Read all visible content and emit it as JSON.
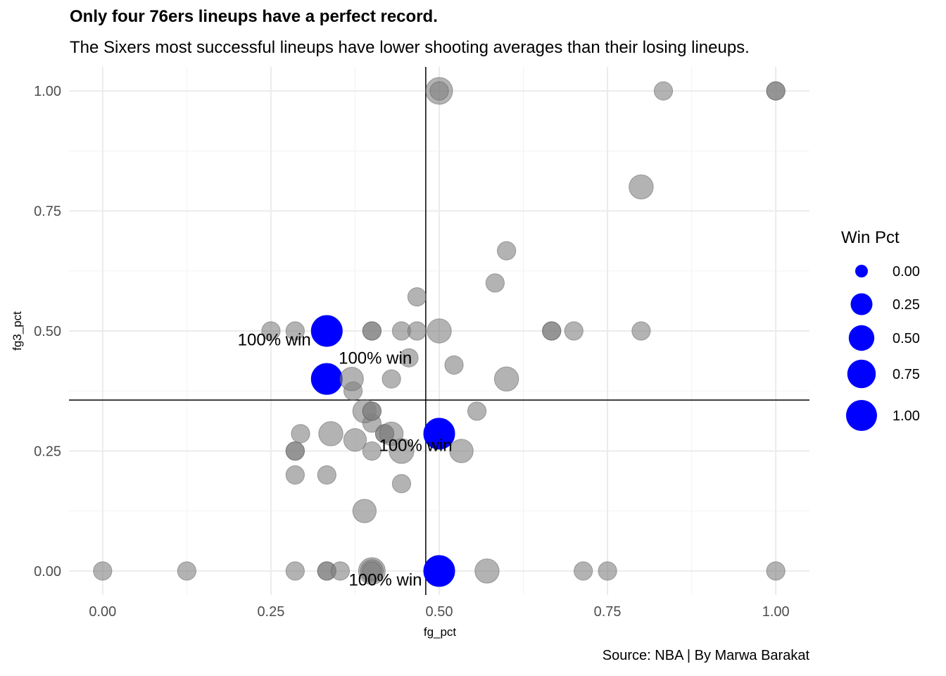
{
  "chart_data": {
    "type": "scatter",
    "title": "Only four 76ers lineups have a perfect record.",
    "subtitle": "The Sixers most successful lineups have lower shooting averages than their losing lineups.",
    "caption": "Source: NBA | By Marwa Barakat",
    "xlabel": "fg_pct",
    "ylabel": "fg3_pct",
    "xlim": [
      -0.05,
      1.05
    ],
    "ylim": [
      -0.05,
      1.05
    ],
    "x_ticks": [
      "0.00",
      "0.25",
      "0.50",
      "0.75",
      "1.00"
    ],
    "y_ticks": [
      "0.00",
      "0.25",
      "0.50",
      "0.75",
      "1.00"
    ],
    "x_tick_values": [
      0,
      0.25,
      0.5,
      0.75,
      1.0
    ],
    "y_tick_values": [
      0,
      0.25,
      0.5,
      0.75,
      1.0
    ],
    "grid": true,
    "reference_lines": {
      "vline_x": 0.48,
      "hline_y": 0.356
    },
    "size_legend": {
      "title": "Win Pct",
      "position": "right",
      "color": "#0000ff",
      "entries": [
        {
          "label": "0.00",
          "value": 0.0
        },
        {
          "label": "0.25",
          "value": 0.25
        },
        {
          "label": "0.50",
          "value": 0.5
        },
        {
          "label": "0.75",
          "value": 0.75
        },
        {
          "label": "1.00",
          "value": 1.0
        }
      ]
    },
    "point_color_default": "#808080",
    "point_color_perfect": "#0000ff",
    "annotation_label": "100% win",
    "annotations": [
      {
        "text": "100% win",
        "x": 0.255,
        "y": 0.47
      },
      {
        "text": "100% win",
        "x": 0.405,
        "y": 0.432
      },
      {
        "text": "100% win",
        "x": 0.465,
        "y": 0.25
      },
      {
        "text": "100% win",
        "x": 0.42,
        "y": -0.03
      }
    ],
    "points": [
      {
        "x": 0.0,
        "y": 0.0,
        "win": 0.1
      },
      {
        "x": 0.125,
        "y": 0.0,
        "win": 0.1
      },
      {
        "x": 0.286,
        "y": 0.0,
        "win": 0.1
      },
      {
        "x": 0.333,
        "y": 0.0,
        "win": 0.1
      },
      {
        "x": 0.333,
        "y": 0.0,
        "win": 0.1
      },
      {
        "x": 0.353,
        "y": 0.0,
        "win": 0.1
      },
      {
        "x": 0.4,
        "y": 0.0,
        "win": 0.6
      },
      {
        "x": 0.4,
        "y": 0.0,
        "win": 0.3
      },
      {
        "x": 0.4,
        "y": 0.0,
        "win": 0.1
      },
      {
        "x": 0.5,
        "y": 0.0,
        "win": 1.0,
        "perfect": true
      },
      {
        "x": 0.571,
        "y": 0.0,
        "win": 0.4
      },
      {
        "x": 0.714,
        "y": 0.0,
        "win": 0.1
      },
      {
        "x": 0.75,
        "y": 0.0,
        "win": 0.1
      },
      {
        "x": 1.0,
        "y": 0.0,
        "win": 0.1
      },
      {
        "x": 0.389,
        "y": 0.125,
        "win": 0.35
      },
      {
        "x": 0.444,
        "y": 0.182,
        "win": 0.1
      },
      {
        "x": 0.286,
        "y": 0.2,
        "win": 0.1
      },
      {
        "x": 0.333,
        "y": 0.2,
        "win": 0.1
      },
      {
        "x": 0.286,
        "y": 0.25,
        "win": 0.1
      },
      {
        "x": 0.286,
        "y": 0.25,
        "win": 0.1
      },
      {
        "x": 0.4,
        "y": 0.25,
        "win": 0.1
      },
      {
        "x": 0.444,
        "y": 0.25,
        "win": 0.45
      },
      {
        "x": 0.533,
        "y": 0.25,
        "win": 0.35
      },
      {
        "x": 0.375,
        "y": 0.273,
        "win": 0.3
      },
      {
        "x": 0.5,
        "y": 0.286,
        "win": 1.0,
        "perfect": true
      },
      {
        "x": 0.294,
        "y": 0.286,
        "win": 0.1
      },
      {
        "x": 0.339,
        "y": 0.286,
        "win": 0.4
      },
      {
        "x": 0.419,
        "y": 0.286,
        "win": 0.1
      },
      {
        "x": 0.419,
        "y": 0.286,
        "win": 0.1
      },
      {
        "x": 0.429,
        "y": 0.286,
        "win": 0.35
      },
      {
        "x": 0.4,
        "y": 0.308,
        "win": 0.1
      },
      {
        "x": 0.389,
        "y": 0.333,
        "win": 0.35
      },
      {
        "x": 0.4,
        "y": 0.333,
        "win": 0.1
      },
      {
        "x": 0.4,
        "y": 0.333,
        "win": 0.1
      },
      {
        "x": 0.556,
        "y": 0.333,
        "win": 0.1
      },
      {
        "x": 0.372,
        "y": 0.375,
        "win": 0.1
      },
      {
        "x": 0.333,
        "y": 0.4,
        "win": 1.0,
        "perfect": true
      },
      {
        "x": 0.37,
        "y": 0.4,
        "win": 0.35
      },
      {
        "x": 0.429,
        "y": 0.4,
        "win": 0.1
      },
      {
        "x": 0.6,
        "y": 0.4,
        "win": 0.4
      },
      {
        "x": 0.522,
        "y": 0.429,
        "win": 0.1
      },
      {
        "x": 0.455,
        "y": 0.444,
        "win": 0.1
      },
      {
        "x": 0.25,
        "y": 0.5,
        "win": 0.1
      },
      {
        "x": 0.286,
        "y": 0.5,
        "win": 0.1
      },
      {
        "x": 0.333,
        "y": 0.5,
        "win": 1.0,
        "perfect": true
      },
      {
        "x": 0.4,
        "y": 0.5,
        "win": 0.1
      },
      {
        "x": 0.4,
        "y": 0.5,
        "win": 0.1
      },
      {
        "x": 0.444,
        "y": 0.5,
        "win": 0.1
      },
      {
        "x": 0.467,
        "y": 0.5,
        "win": 0.1
      },
      {
        "x": 0.5,
        "y": 0.5,
        "win": 0.4
      },
      {
        "x": 0.667,
        "y": 0.5,
        "win": 0.1
      },
      {
        "x": 0.667,
        "y": 0.5,
        "win": 0.1
      },
      {
        "x": 0.7,
        "y": 0.5,
        "win": 0.1
      },
      {
        "x": 0.8,
        "y": 0.5,
        "win": 0.1
      },
      {
        "x": 0.467,
        "y": 0.571,
        "win": 0.1
      },
      {
        "x": 0.583,
        "y": 0.6,
        "win": 0.1
      },
      {
        "x": 0.6,
        "y": 0.667,
        "win": 0.1
      },
      {
        "x": 0.8,
        "y": 0.8,
        "win": 0.4
      },
      {
        "x": 0.5,
        "y": 1.0,
        "win": 0.6
      },
      {
        "x": 0.5,
        "y": 1.0,
        "win": 0.1
      },
      {
        "x": 0.833,
        "y": 1.0,
        "win": 0.1
      },
      {
        "x": 1.0,
        "y": 1.0,
        "win": 0.1
      },
      {
        "x": 1.0,
        "y": 1.0,
        "win": 0.1
      }
    ]
  }
}
